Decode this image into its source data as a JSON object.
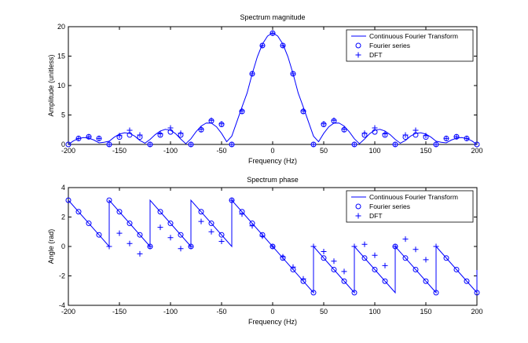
{
  "colors": {
    "series": "#0000ff",
    "axes": "#000000",
    "background": "#ffffff"
  },
  "chart_data": [
    {
      "type": "line",
      "title": "Spectrum magnitude",
      "xlabel": "Frequency (Hz)",
      "ylabel": "Amplitude (unitless)",
      "xlim": [
        -200,
        200
      ],
      "ylim": [
        0,
        20
      ],
      "xticks": [
        -200,
        -150,
        -100,
        -50,
        0,
        50,
        100,
        150,
        200
      ],
      "yticks": [
        0,
        5,
        10,
        15,
        20
      ],
      "grid": false,
      "legend_position": "top-right",
      "legend": [
        "Continuous Fourier Transform",
        "Fourier series",
        "DFT"
      ],
      "series": [
        {
          "name": "Continuous Fourier Transform",
          "style": "line",
          "x": [
            -200,
            -195,
            -190,
            -185,
            -180,
            -175,
            -170,
            -165,
            -160,
            -155,
            -150,
            -145,
            -140,
            -135,
            -130,
            -125,
            -120,
            -115,
            -110,
            -105,
            -100,
            -95,
            -90,
            -85,
            -80,
            -75,
            -70,
            -65,
            -60,
            -55,
            -50,
            -45,
            -40,
            -35,
            -30,
            -25,
            -20,
            -15,
            -10,
            -5,
            0,
            5,
            10,
            15,
            20,
            25,
            30,
            35,
            40,
            45,
            50,
            55,
            60,
            65,
            70,
            75,
            80,
            85,
            90,
            95,
            100,
            105,
            110,
            115,
            120,
            125,
            130,
            135,
            140,
            145,
            150,
            155,
            160,
            165,
            170,
            175,
            180,
            185,
            190,
            195,
            200
          ],
          "y": [
            0,
            0.61,
            1.01,
            1.17,
            1.07,
            0.75,
            0.27,
            0.37,
            0.55,
            1.24,
            1.75,
            1.98,
            1.87,
            1.41,
            0.68,
            0.21,
            0.85,
            1.66,
            2.28,
            2.56,
            2.41,
            1.83,
            0.92,
            0.12,
            0.96,
            2.16,
            3.12,
            3.64,
            3.62,
            3.0,
            1.87,
            0.46,
            1.41,
            3.87,
            6.36,
            8.74,
            12.0,
            14.88,
            17.05,
            18.4,
            18.95,
            18.4,
            17.05,
            14.88,
            12.0,
            8.74,
            6.36,
            3.87,
            1.41,
            0.46,
            1.87,
            3.0,
            3.62,
            3.64,
            3.12,
            2.16,
            0.96,
            0.12,
            0.92,
            1.83,
            2.41,
            2.56,
            2.28,
            1.66,
            0.85,
            0.21,
            0.68,
            1.41,
            1.87,
            1.98,
            1.75,
            1.24,
            0.55,
            0.37,
            0.27,
            0.75,
            1.07,
            1.17,
            1.01,
            0.61,
            0
          ]
        },
        {
          "name": "Fourier series",
          "style": "circle",
          "x": [
            -200,
            -190,
            -180,
            -170,
            -160,
            -150,
            -140,
            -130,
            -120,
            -110,
            -100,
            -90,
            -80,
            -70,
            -60,
            -50,
            -40,
            -30,
            -20,
            -10,
            0,
            10,
            20,
            30,
            40,
            50,
            60,
            70,
            80,
            90,
            100,
            110,
            120,
            130,
            140,
            150,
            160,
            170,
            180,
            190,
            200
          ],
          "y": [
            0,
            1.01,
            1.3,
            1.01,
            0,
            1.24,
            1.61,
            1.24,
            0,
            1.6,
            2.12,
            1.6,
            0,
            2.5,
            4.0,
            3.4,
            0,
            5.6,
            12.0,
            16.8,
            18.9,
            16.8,
            12.0,
            5.6,
            0,
            3.4,
            4.0,
            2.5,
            0,
            1.6,
            2.12,
            1.6,
            0,
            1.24,
            1.61,
            1.24,
            0,
            1.01,
            1.3,
            1.01,
            0
          ]
        },
        {
          "name": "DFT",
          "style": "plus",
          "x": [
            -190,
            -180,
            -170,
            -160,
            -150,
            -140,
            -130,
            -120,
            -110,
            -100,
            -90,
            -80,
            -70,
            -60,
            -50,
            -40,
            -30,
            -20,
            -10,
            0,
            10,
            20,
            30,
            40,
            50,
            60,
            70,
            80,
            90,
            100,
            110,
            120,
            130,
            140,
            150,
            160,
            170,
            180,
            190
          ],
          "y": [
            1.01,
            1.3,
            1.01,
            0,
            1.5,
            2.4,
            1.6,
            0,
            1.8,
            2.8,
            1.9,
            0,
            2.6,
            4.1,
            3.5,
            0,
            5.7,
            12.0,
            16.8,
            18.9,
            16.8,
            12.0,
            5.7,
            0,
            3.5,
            4.1,
            2.6,
            0,
            1.9,
            2.8,
            1.8,
            0,
            1.6,
            2.4,
            1.5,
            0,
            1.01,
            1.3,
            1.01
          ]
        }
      ]
    },
    {
      "type": "line",
      "title": "Spectrum phase",
      "xlabel": "Frequency (Hz)",
      "ylabel": "Angle (rad)",
      "xlim": [
        -200,
        200
      ],
      "ylim": [
        -4,
        4
      ],
      "xticks": [
        -200,
        -150,
        -100,
        -50,
        0,
        50,
        100,
        150,
        200
      ],
      "yticks": [
        -4,
        -2,
        0,
        2,
        4
      ],
      "grid": false,
      "legend_position": "top-right",
      "legend": [
        "Continuous Fourier Transform",
        "Fourier series",
        "DFT"
      ],
      "series": [
        {
          "name": "Continuous Fourier Transform",
          "style": "line",
          "x": [
            -200,
            -160,
            -160,
            -120,
            -120,
            -80,
            -80,
            -40,
            -40,
            40,
            40,
            80,
            80,
            120,
            120,
            160,
            160,
            200,
            200
          ],
          "y": [
            3.14,
            0,
            3.14,
            0,
            3.14,
            0,
            3.14,
            0,
            3.14,
            -3.14,
            0,
            -3.14,
            0,
            -3.14,
            0,
            -3.14,
            0,
            -3.14,
            -1.6
          ]
        },
        {
          "name": "Fourier series",
          "style": "circle",
          "x": [
            -200,
            -190,
            -180,
            -170,
            -160,
            -150,
            -140,
            -130,
            -120,
            -110,
            -100,
            -90,
            -80,
            -70,
            -60,
            -50,
            -40,
            -30,
            -20,
            -10,
            0,
            10,
            20,
            30,
            40,
            50,
            60,
            70,
            80,
            90,
            100,
            110,
            120,
            130,
            140,
            150,
            160,
            170,
            180,
            190,
            200
          ],
          "y": [
            3.14,
            2.36,
            1.57,
            0.79,
            3.14,
            2.36,
            1.57,
            0.79,
            0,
            2.36,
            1.57,
            0.79,
            0,
            2.36,
            1.57,
            0.79,
            3.14,
            2.36,
            1.57,
            0.79,
            0,
            -0.79,
            -1.57,
            -2.36,
            -3.14,
            -0.79,
            -1.57,
            -2.36,
            -3.14,
            -0.79,
            -1.57,
            -2.36,
            0,
            -0.79,
            -1.57,
            -2.36,
            -3.14,
            -0.79,
            -1.57,
            -2.36,
            -3.14
          ]
        },
        {
          "name": "DFT",
          "style": "plus",
          "x": [
            -160,
            -150,
            -140,
            -130,
            -120,
            -110,
            -100,
            -90,
            -80,
            -70,
            -60,
            -50,
            -40,
            -30,
            -20,
            -10,
            0,
            10,
            20,
            30,
            40,
            50,
            60,
            70,
            80,
            90,
            100,
            110,
            120,
            130,
            140,
            150,
            160
          ],
          "y": [
            0,
            0.9,
            0.2,
            -0.5,
            0,
            1.3,
            0.6,
            -0.15,
            0,
            1.7,
            1.0,
            0.35,
            3.14,
            2.2,
            1.4,
            0.7,
            0,
            -0.7,
            -1.4,
            -2.2,
            0,
            -0.35,
            -1.0,
            -1.7,
            0,
            0.15,
            -0.6,
            -1.3,
            0,
            0.5,
            -0.2,
            -0.9,
            0
          ]
        }
      ]
    }
  ]
}
